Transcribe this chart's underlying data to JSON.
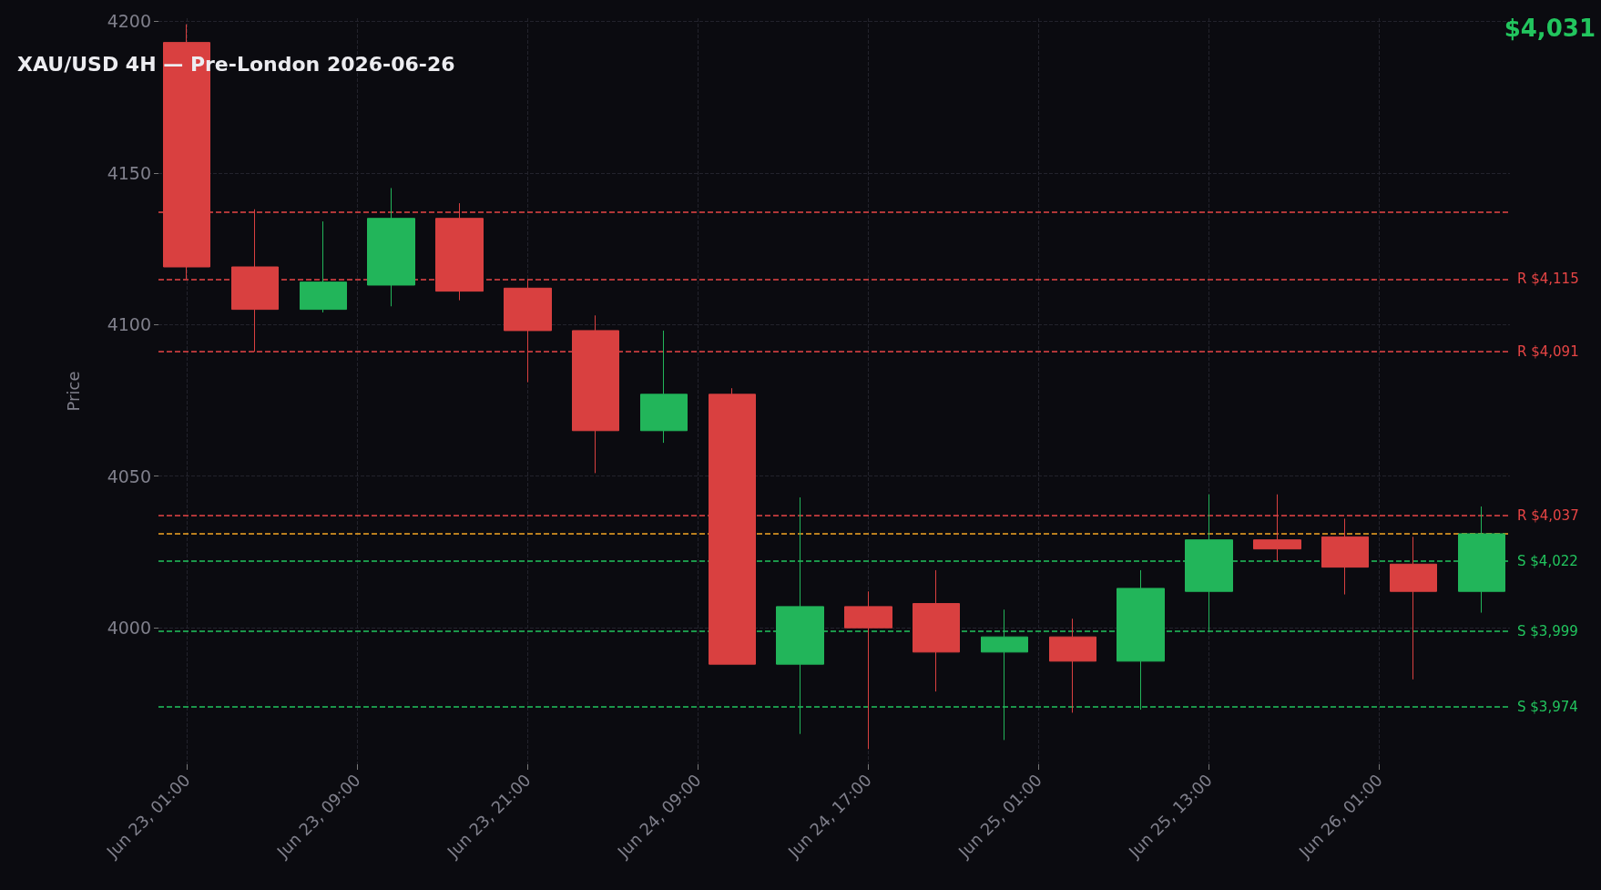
{
  "chart_data": {
    "type": "candlestick",
    "title": "XAU/USD 4H — Pre-London 2026-06-26",
    "ylabel": "Price",
    "annotations": [
      "$4,031"
    ],
    "x": [
      "2026-06-23T01:00",
      "2026-06-23T05:00",
      "2026-06-23T09:00",
      "2026-06-23T13:00",
      "2026-06-23T17:00",
      "2026-06-23T21:00",
      "2026-06-24T01:00",
      "2026-06-24T05:00",
      "2026-06-24T09:00",
      "2026-06-24T13:00",
      "2026-06-24T17:00",
      "2026-06-24T21:00",
      "2026-06-25T01:00",
      "2026-06-25T05:00",
      "2026-06-25T09:00",
      "2026-06-25T13:00",
      "2026-06-25T17:00",
      "2026-06-25T21:00",
      "2026-06-26T01:00",
      "2026-06-26T05:00"
    ],
    "ohlc": [
      [
        4193,
        4199,
        4115,
        4119
      ],
      [
        4119,
        4138,
        4091,
        4105
      ],
      [
        4105,
        4134,
        4104,
        4114
      ],
      [
        4113,
        4145,
        4106,
        4135
      ],
      [
        4135,
        4140,
        4108,
        4111
      ],
      [
        4112,
        4115,
        4081,
        4098
      ],
      [
        4098,
        4103,
        4051,
        4065
      ],
      [
        4065,
        4098,
        4061,
        4077
      ],
      [
        4077,
        4079,
        3988,
        3988
      ],
      [
        3988,
        4043,
        3965,
        4007
      ],
      [
        4007,
        4012,
        3960,
        4000
      ],
      [
        4008,
        4019,
        3979,
        3992
      ],
      [
        3992,
        4006,
        3963,
        3997
      ],
      [
        3997,
        4003,
        3972,
        3989
      ],
      [
        3989,
        4019,
        3973,
        4013
      ],
      [
        4012,
        4044,
        3999,
        4029
      ],
      [
        4029,
        4044,
        4022,
        4026
      ],
      [
        4030,
        4036,
        4011,
        4020
      ],
      [
        4021,
        4030,
        3983,
        4012
      ],
      [
        4012,
        4040,
        4005,
        4031
      ]
    ],
    "colors": [
      "#d94040",
      "#d94040",
      "#22b55a",
      "#22b55a",
      "#d94040",
      "#d94040",
      "#d94040",
      "#22b55a",
      "#d94040",
      "#22b55a",
      "#d94040",
      "#d94040",
      "#22b55a",
      "#d94040",
      "#22b55a",
      "#22b55a",
      "#d94040",
      "#d94040",
      "#d94040",
      "#22b55a"
    ],
    "xlim": [
      "2026-06-22T23:20",
      "2026-06-26T06:40"
    ],
    "xticks": [
      {
        "value": "2026-06-23T01:00",
        "label": "Jun 23, 01:00"
      },
      {
        "value": "2026-06-23T11:00",
        "label": "Jun 23, 09:00"
      },
      {
        "value": "2026-06-23T21:00",
        "label": "Jun 23, 21:00"
      },
      {
        "value": "2026-06-24T07:00",
        "label": "Jun 24, 09:00"
      },
      {
        "value": "2026-06-24T17:00",
        "label": "Jun 24, 17:00"
      },
      {
        "value": "2026-06-25T03:00",
        "label": "Jun 25, 01:00"
      },
      {
        "value": "2026-06-25T13:00",
        "label": "Jun 25, 13:00"
      },
      {
        "value": "2026-06-25T23:00",
        "label": "Jun 26, 01:00"
      }
    ],
    "ylim": [
      3955,
      4201
    ],
    "yticks": [
      4000,
      4050,
      4100,
      4150,
      4200
    ],
    "grid": true,
    "ref_lines": [
      {
        "axis": "y",
        "value": 4137,
        "color": "#e84545",
        "line_style": "dashed"
      },
      {
        "axis": "y",
        "value": 4115,
        "label": "R $4,115",
        "color": "#e84545",
        "line_style": "dashed"
      },
      {
        "axis": "y",
        "value": 4091,
        "label": "R $4,091",
        "color": "#e84545",
        "line_style": "dashed"
      },
      {
        "axis": "y",
        "value": 4037,
        "label": "R $4,037",
        "color": "#e84545",
        "line_style": "dashed"
      },
      {
        "axis": "y",
        "value": 4031,
        "color": "#f5a623",
        "line_style": "dashed"
      },
      {
        "axis": "y",
        "value": 4022,
        "label": "S $4,022",
        "color": "#22c55e",
        "line_style": "dashed"
      },
      {
        "axis": "y",
        "value": 3999,
        "label": "S $3,999",
        "color": "#22c55e",
        "line_style": "dashed"
      },
      {
        "axis": "y",
        "value": 3974,
        "label": "S $3,974",
        "color": "#22c55e",
        "line_style": "dashed"
      }
    ]
  }
}
